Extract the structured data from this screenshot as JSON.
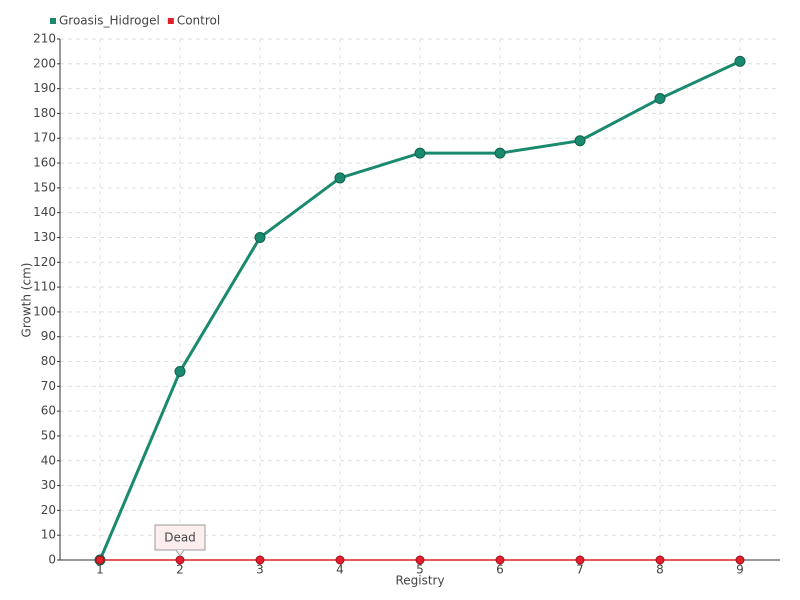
{
  "chart_data": {
    "type": "line",
    "x_label": "Registry",
    "y_label": "Growth (cm)",
    "categories": [
      "1",
      "2",
      "3",
      "4",
      "5",
      "6",
      "7",
      "8",
      "9"
    ],
    "series": [
      {
        "name": "Groasis_Hidrogel",
        "color": "#1a8a6e",
        "values": [
          0,
          76,
          130,
          154,
          164,
          164,
          169,
          186,
          201
        ]
      },
      {
        "name": "Control",
        "color": "#e0202a",
        "values": [
          0,
          0,
          0,
          0,
          0,
          0,
          0,
          0,
          0
        ]
      }
    ],
    "annotations": [
      {
        "text": "Dead",
        "series": "Control",
        "category": "2"
      }
    ],
    "ylim": [
      0,
      210
    ],
    "yticks": [
      0,
      10,
      20,
      30,
      40,
      50,
      60,
      70,
      80,
      90,
      100,
      110,
      120,
      130,
      140,
      150,
      160,
      170,
      180,
      190,
      200,
      210
    ],
    "grid": true,
    "legend": "top-left"
  }
}
